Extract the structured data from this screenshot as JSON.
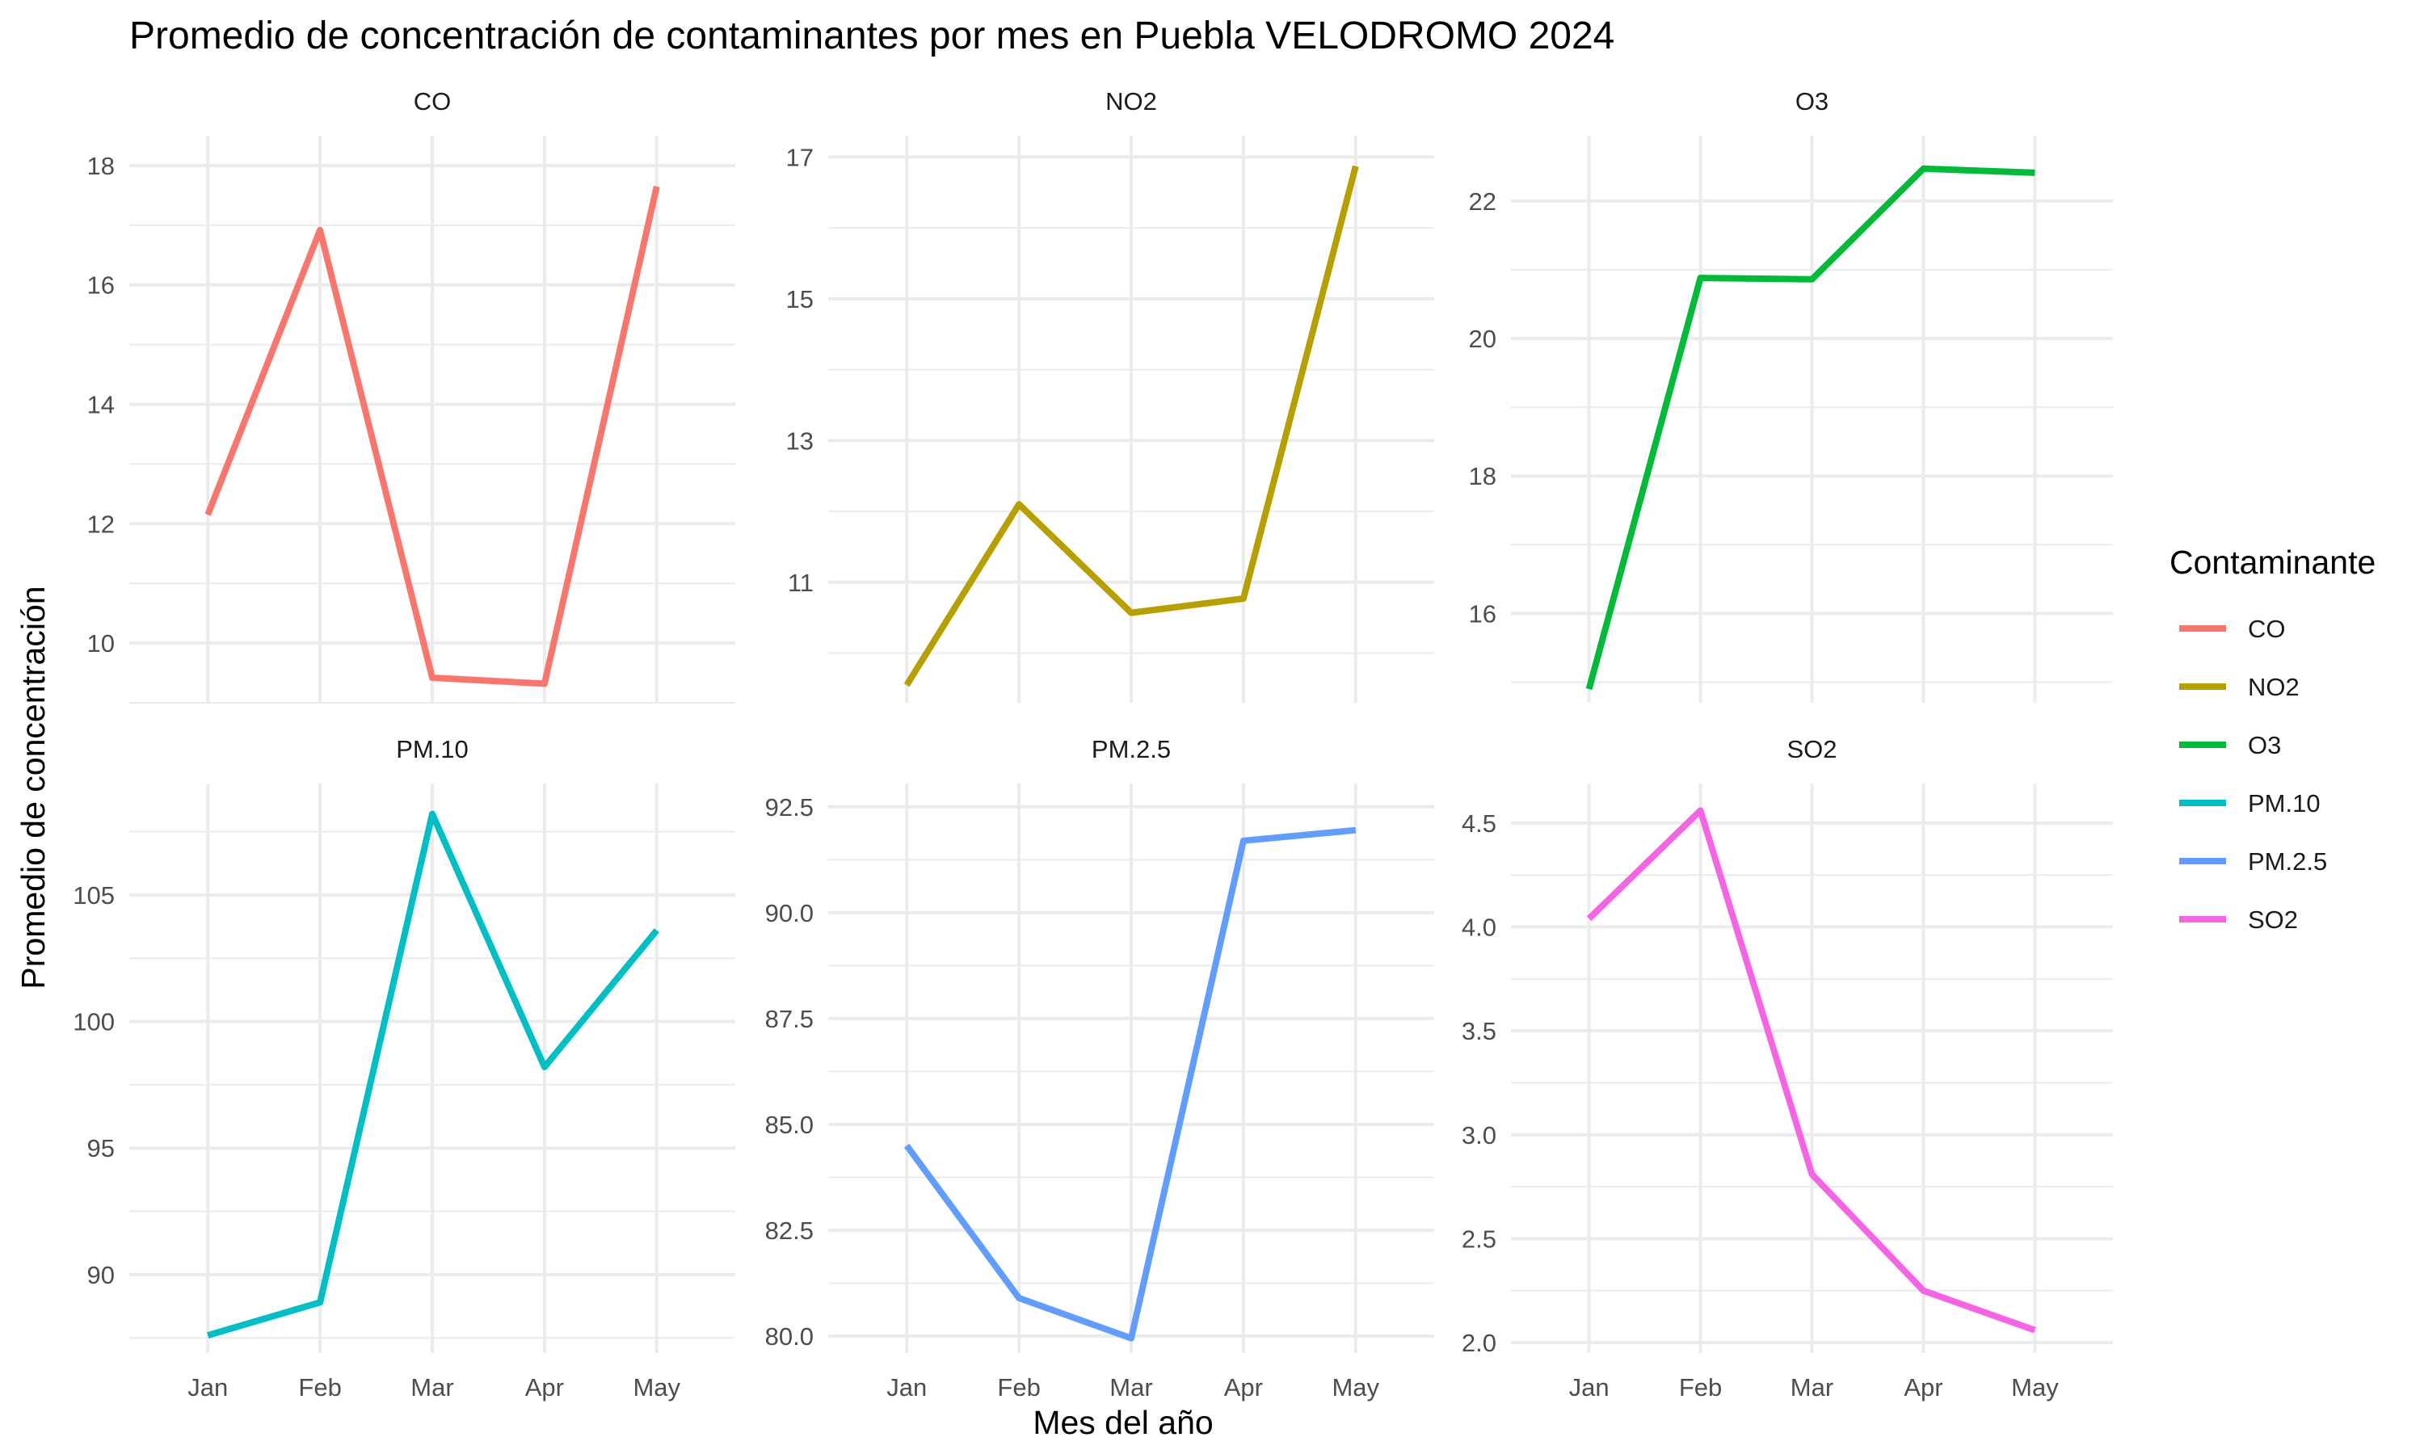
{
  "chart_data": {
    "type": "line",
    "title": "Promedio de concentración de contaminantes por mes en Puebla VELODROMO 2024",
    "xlabel": "Mes del año",
    "ylabel": "Promedio de concentración",
    "categories": [
      "Jan",
      "Feb",
      "Mar",
      "Apr",
      "May"
    ],
    "legend": {
      "title": "Contaminante",
      "placement": "right",
      "entries": [
        {
          "name": "CO",
          "color": "#F8766D"
        },
        {
          "name": "NO2",
          "color": "#B79F00"
        },
        {
          "name": "O3",
          "color": "#00BA38"
        },
        {
          "name": "PM.10",
          "color": "#00BFC4"
        },
        {
          "name": "PM.2.5",
          "color": "#619CFF"
        },
        {
          "name": "SO2",
          "color": "#F564E3"
        }
      ]
    },
    "grid": true,
    "panels": [
      {
        "name": "CO",
        "color": "#F8766D",
        "values": [
          12.15,
          16.92,
          9.42,
          9.32,
          17.65
        ],
        "ylim": [
          9.0,
          18.5
        ],
        "yticks": [
          "10",
          "12",
          "14",
          "16",
          "18"
        ],
        "ytick_values": [
          10,
          12,
          14,
          16,
          18
        ]
      },
      {
        "name": "NO2",
        "color": "#B79F00",
        "values": [
          9.55,
          12.1,
          10.57,
          10.77,
          16.87
        ],
        "ylim": [
          9.3,
          17.3
        ],
        "yticks": [
          "11",
          "13",
          "15",
          "17"
        ],
        "ytick_values": [
          11,
          13,
          15,
          17
        ]
      },
      {
        "name": "O3",
        "color": "#00BA38",
        "values": [
          14.9,
          20.88,
          20.86,
          22.47,
          22.41
        ],
        "ylim": [
          14.7,
          22.95
        ],
        "yticks": [
          "16",
          "18",
          "20",
          "22"
        ],
        "ytick_values": [
          16,
          18,
          20,
          22
        ]
      },
      {
        "name": "PM.10",
        "color": "#00BFC4",
        "values": [
          87.6,
          88.9,
          108.2,
          98.2,
          103.6
        ],
        "ylim": [
          86.9,
          109.4
        ],
        "yticks": [
          "90",
          "95",
          "100",
          "105"
        ],
        "ytick_values": [
          90,
          95,
          100,
          105
        ]
      },
      {
        "name": "PM.2.5",
        "color": "#619CFF",
        "values": [
          84.5,
          80.9,
          79.95,
          91.7,
          91.95
        ],
        "ylim": [
          79.6,
          93.05
        ],
        "yticks": [
          "80.0",
          "82.5",
          "85.0",
          "87.5",
          "90.0",
          "92.5"
        ],
        "ytick_values": [
          80,
          82.5,
          85,
          87.5,
          90,
          92.5
        ]
      },
      {
        "name": "SO2",
        "color": "#F564E3",
        "values": [
          4.04,
          4.56,
          2.81,
          2.25,
          2.06
        ],
        "ylim": [
          1.95,
          4.69
        ],
        "yticks": [
          "2.0",
          "2.5",
          "3.0",
          "3.5",
          "4.0",
          "4.5"
        ],
        "ytick_values": [
          2,
          2.5,
          3,
          3.5,
          4,
          4.5
        ]
      }
    ]
  }
}
